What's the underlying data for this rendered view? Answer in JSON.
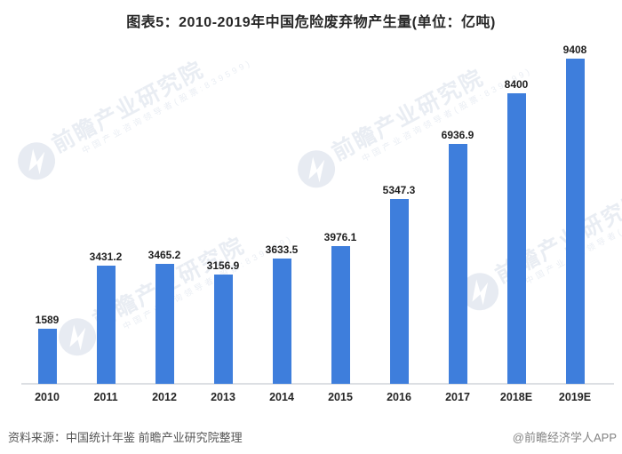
{
  "title": "图表5：2010-2019年中国危险废弃物产生量(单位：亿吨)",
  "chart_data": {
    "type": "bar",
    "title": "图表5：2010-2019年中国危险废弃物产生量(单位：亿吨)",
    "unit_label": "亿吨",
    "categories": [
      "2010",
      "2011",
      "2012",
      "2013",
      "2014",
      "2015",
      "2016",
      "2017",
      "2018E",
      "2019E"
    ],
    "values": [
      1589,
      3431.2,
      3465.2,
      3156.9,
      3633.5,
      3976.1,
      5347.3,
      6936.9,
      8400,
      9408
    ],
    "value_labels": [
      "1589",
      "3431.2",
      "3465.2",
      "3156.9",
      "3633.5",
      "3976.1",
      "5347.3",
      "6936.9",
      "8400",
      "9408"
    ],
    "xlabel": "",
    "ylabel": "",
    "grid": false,
    "legend": "none",
    "bar_color": "#3e7edc"
  },
  "watermark": {
    "main_text": "前瞻产业研究院",
    "sub_text": "中国产业咨询领导者(股票:839599)",
    "logo": "qianzhan-logo"
  },
  "footer": {
    "source": "资料来源：中国统计年鉴 前瞻产业研究院整理",
    "credit": "@前瞻经济学人APP"
  },
  "colors": {
    "bar": "#3e7edc",
    "axis_line": "#dcdfe3",
    "title_text": "#262626",
    "value_label_text": "#1f1f1f",
    "source_text": "#555555",
    "credit_text": "#848484",
    "watermark": "#e9edf3"
  }
}
